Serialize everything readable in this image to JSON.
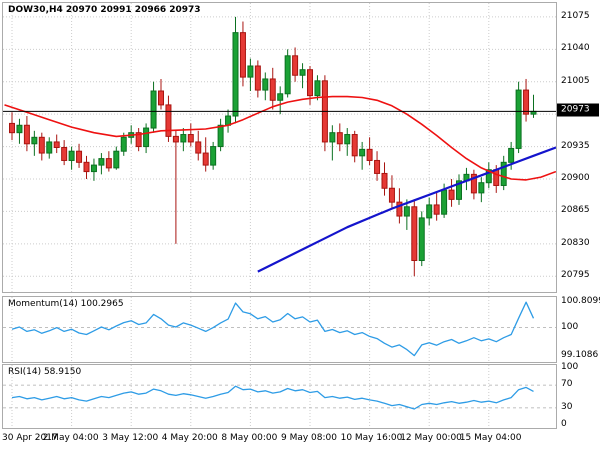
{
  "window": {
    "chart_title": "DOW30,H4 20970 20991 20966 20973"
  },
  "indicators": {
    "momentum_label": "Momentum(14) 100.2965",
    "rsi_label": "RSI(14) 58.9150"
  },
  "axes": {
    "price_labels": [
      "21075",
      "21040",
      "21005",
      "20935",
      "20900",
      "20865",
      "20830",
      "20795"
    ],
    "current_price": "20973",
    "momentum_labels": [
      "100.8099",
      "100",
      "99.1086"
    ],
    "rsi_labels": [
      "100",
      "70",
      "30",
      "0"
    ],
    "time_labels": [
      "30 Apr 2017",
      "2 May 04:00",
      "3 May 12:00",
      "4 May 20:00",
      "8 May 00:00",
      "9 May 08:00",
      "10 May 16:00",
      "12 May 00:00",
      "15 May 04:00"
    ]
  },
  "colors": {
    "bull": "#1ba135",
    "bull_border": "#0b7020",
    "bear": "#e53935",
    "bear_border": "#a81410",
    "ma_red": "#ee1111",
    "ma_blue": "#1414cc",
    "indicator_line": "#2e9ce6",
    "grid": "#cccccc",
    "level": "#aaaaaa",
    "price_line": "#000000"
  },
  "chart_data": {
    "type": "candlestick",
    "title": "DOW30,H4",
    "symbol": "DOW30",
    "timeframe": "H4",
    "ohlc_current": {
      "open": 20970,
      "high": 20991,
      "low": 20966,
      "close": 20973
    },
    "ylim": [
      20778,
      21090
    ],
    "grid_prices": [
      21075,
      21040,
      21005,
      20970,
      20935,
      20900,
      20865,
      20830,
      20795
    ],
    "current_price": 20973,
    "time_gridline_bars": [
      0,
      8,
      16,
      24,
      32,
      40,
      48,
      56,
      64
    ],
    "candles": [
      [
        20960,
        20972,
        20942,
        20950
      ],
      [
        20950,
        20965,
        20938,
        20958
      ],
      [
        20958,
        20968,
        20930,
        20938
      ],
      [
        20938,
        20952,
        20925,
        20945
      ],
      [
        20945,
        20950,
        20920,
        20928
      ],
      [
        20928,
        20945,
        20922,
        20940
      ],
      [
        20940,
        20948,
        20928,
        20934
      ],
      [
        20934,
        20942,
        20915,
        20920
      ],
      [
        20920,
        20935,
        20910,
        20930
      ],
      [
        20930,
        20938,
        20912,
        20918
      ],
      [
        20918,
        20925,
        20900,
        20908
      ],
      [
        20908,
        20922,
        20898,
        20915
      ],
      [
        20915,
        20928,
        20905,
        20922
      ],
      [
        20922,
        20930,
        20908,
        20912
      ],
      [
        20912,
        20935,
        20910,
        20930
      ],
      [
        20930,
        20950,
        20925,
        20945
      ],
      [
        20945,
        20958,
        20938,
        20950
      ],
      [
        20950,
        20955,
        20930,
        20935
      ],
      [
        20935,
        20960,
        20928,
        20955
      ],
      [
        20955,
        21005,
        20950,
        20995
      ],
      [
        20995,
        21008,
        20975,
        20980
      ],
      [
        20980,
        20990,
        20940,
        20946
      ],
      [
        20946,
        20952,
        20830,
        20940
      ],
      [
        20940,
        20955,
        20930,
        20948
      ],
      [
        20948,
        20960,
        20935,
        20940
      ],
      [
        20940,
        20952,
        20920,
        20928
      ],
      [
        20928,
        20945,
        20908,
        20915
      ],
      [
        20915,
        20940,
        20910,
        20935
      ],
      [
        20935,
        20965,
        20930,
        20958
      ],
      [
        20958,
        20975,
        20950,
        20968
      ],
      [
        20968,
        21075,
        20960,
        21058
      ],
      [
        21058,
        21070,
        21000,
        21010
      ],
      [
        21010,
        21030,
        20995,
        21022
      ],
      [
        21022,
        21028,
        20988,
        20996
      ],
      [
        20996,
        21015,
        20985,
        21008
      ],
      [
        21008,
        21020,
        20975,
        20985
      ],
      [
        20985,
        21000,
        20970,
        20992
      ],
      [
        20992,
        21040,
        20988,
        21033
      ],
      [
        21033,
        21042,
        21005,
        21012
      ],
      [
        21012,
        21025,
        20998,
        21018
      ],
      [
        21018,
        21022,
        20980,
        20990
      ],
      [
        20990,
        21012,
        20985,
        21006
      ],
      [
        21006,
        21012,
        20930,
        20940
      ],
      [
        20940,
        20958,
        20920,
        20950
      ],
      [
        20950,
        20960,
        20930,
        20938
      ],
      [
        20938,
        20955,
        20925,
        20948
      ],
      [
        20948,
        20952,
        20918,
        20925
      ],
      [
        20925,
        20940,
        20910,
        20932
      ],
      [
        20932,
        20945,
        20915,
        20920
      ],
      [
        20920,
        20930,
        20898,
        20906
      ],
      [
        20906,
        20918,
        20882,
        20890
      ],
      [
        20890,
        20904,
        20868,
        20875
      ],
      [
        20875,
        20890,
        20852,
        20860
      ],
      [
        20860,
        20878,
        20845,
        20870
      ],
      [
        20870,
        20878,
        20795,
        20812
      ],
      [
        20812,
        20865,
        20806,
        20858
      ],
      [
        20858,
        20880,
        20850,
        20872
      ],
      [
        20872,
        20885,
        20855,
        20862
      ],
      [
        20862,
        20895,
        20858,
        20888
      ],
      [
        20888,
        20900,
        20870,
        20878
      ],
      [
        20878,
        20905,
        20872,
        20898
      ],
      [
        20898,
        20912,
        20888,
        20905
      ],
      [
        20905,
        20910,
        20878,
        20885
      ],
      [
        20885,
        20902,
        20875,
        20896
      ],
      [
        20896,
        20918,
        20890,
        20910
      ],
      [
        20910,
        20915,
        20885,
        20893
      ],
      [
        20893,
        20925,
        20888,
        20918
      ],
      [
        20918,
        20940,
        20910,
        20933
      ],
      [
        20933,
        21005,
        20928,
        20996
      ],
      [
        20996,
        21008,
        20962,
        20970
      ],
      [
        20970,
        20991,
        20966,
        20973
      ]
    ],
    "ma_red": [
      [
        -1,
        20980
      ],
      [
        2,
        20972
      ],
      [
        5,
        20964
      ],
      [
        8,
        20956
      ],
      [
        11,
        20950
      ],
      [
        14,
        20946
      ],
      [
        17,
        20948
      ],
      [
        20,
        20952
      ],
      [
        23,
        20953
      ],
      [
        26,
        20954
      ],
      [
        29,
        20958
      ],
      [
        31,
        20964
      ],
      [
        33,
        20971
      ],
      [
        35,
        20978
      ],
      [
        37,
        20983
      ],
      [
        39,
        20986
      ],
      [
        41,
        20988
      ],
      [
        43,
        20989
      ],
      [
        45,
        20989
      ],
      [
        47,
        20988
      ],
      [
        49,
        20985
      ],
      [
        51,
        20979
      ],
      [
        53,
        20970
      ],
      [
        55,
        20959
      ],
      [
        57,
        20947
      ],
      [
        59,
        20934
      ],
      [
        61,
        20922
      ],
      [
        63,
        20912
      ],
      [
        65,
        20905
      ],
      [
        67,
        20900
      ],
      [
        69,
        20899
      ],
      [
        71,
        20902
      ],
      [
        73,
        20908
      ]
    ],
    "ma_blue": [
      [
        33,
        20800
      ],
      [
        36,
        20812
      ],
      [
        39,
        20824
      ],
      [
        42,
        20836
      ],
      [
        45,
        20848
      ],
      [
        48,
        20858
      ],
      [
        51,
        20868
      ],
      [
        54,
        20877
      ],
      [
        57,
        20886
      ],
      [
        60,
        20895
      ],
      [
        63,
        20904
      ],
      [
        66,
        20913
      ],
      [
        68,
        20919
      ],
      [
        70,
        20925
      ],
      [
        73,
        20934
      ]
    ],
    "momentum": {
      "ylim": [
        99.0,
        100.88
      ],
      "levels": [
        100
      ],
      "current": 100.2965,
      "values": [
        99.95,
        100.02,
        99.88,
        99.93,
        99.82,
        99.9,
        100.0,
        99.88,
        99.95,
        99.83,
        99.78,
        99.9,
        100.02,
        99.93,
        100.05,
        100.16,
        100.22,
        100.1,
        100.15,
        100.42,
        100.28,
        100.08,
        100.02,
        100.15,
        100.08,
        99.98,
        99.88,
        100.0,
        100.15,
        100.27,
        100.78,
        100.5,
        100.44,
        100.28,
        100.35,
        100.18,
        100.25,
        100.45,
        100.28,
        100.34,
        100.18,
        100.24,
        99.88,
        99.94,
        99.84,
        99.9,
        99.78,
        99.84,
        99.72,
        99.65,
        99.5,
        99.38,
        99.45,
        99.3,
        99.1086,
        99.45,
        99.52,
        99.44,
        99.55,
        99.62,
        99.5,
        99.58,
        99.68,
        99.58,
        99.64,
        99.55,
        99.68,
        99.78,
        100.3,
        100.8099,
        100.2965
      ]
    },
    "rsi": {
      "ylim": [
        0,
        100
      ],
      "levels": [
        70,
        30
      ],
      "current": 58.915,
      "values": [
        48,
        50,
        46,
        48,
        44,
        47,
        50,
        46,
        48,
        44,
        42,
        46,
        50,
        48,
        52,
        56,
        58,
        54,
        56,
        63,
        60,
        54,
        52,
        55,
        53,
        50,
        47,
        50,
        54,
        57,
        68,
        62,
        63,
        58,
        60,
        56,
        58,
        64,
        60,
        62,
        57,
        59,
        48,
        50,
        47,
        49,
        45,
        47,
        44,
        42,
        38,
        34,
        36,
        32,
        28,
        36,
        38,
        36,
        39,
        41,
        38,
        40,
        43,
        40,
        42,
        39,
        44,
        48,
        62,
        66,
        58.915
      ]
    }
  }
}
